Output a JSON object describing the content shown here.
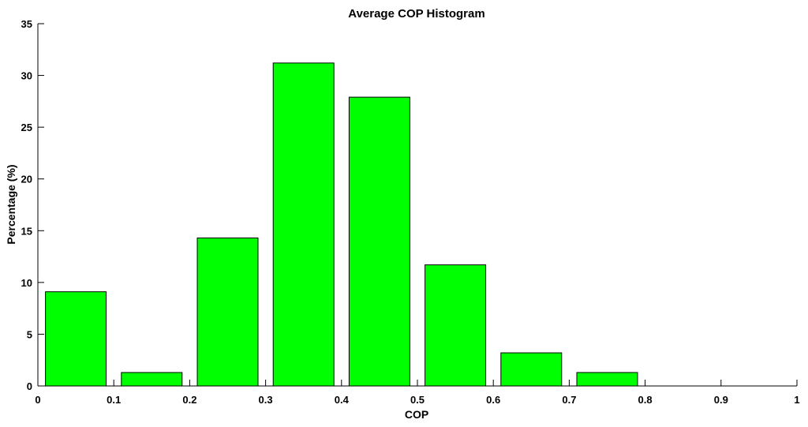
{
  "chart_data": {
    "type": "bar",
    "title": "Average COP Histogram",
    "xlabel": "COP",
    "ylabel": "Percentage (%)",
    "xlim": [
      0,
      1
    ],
    "ylim": [
      0,
      35
    ],
    "x_ticks": [
      "0",
      "0.1",
      "0.2",
      "0.3",
      "0.4",
      "0.5",
      "0.6",
      "0.7",
      "0.8",
      "0.9",
      "1"
    ],
    "y_ticks": [
      "0",
      "5",
      "10",
      "15",
      "20",
      "25",
      "30",
      "35"
    ],
    "bin_centers": [
      0.05,
      0.15,
      0.25,
      0.35,
      0.45,
      0.55,
      0.65,
      0.75,
      0.85,
      0.95
    ],
    "bin_width": 0.1,
    "values": [
      9.1,
      1.3,
      14.3,
      31.2,
      27.9,
      11.7,
      3.2,
      1.3,
      0,
      0
    ],
    "bar_color": "#00ff00",
    "grid": false,
    "legend": "none"
  }
}
